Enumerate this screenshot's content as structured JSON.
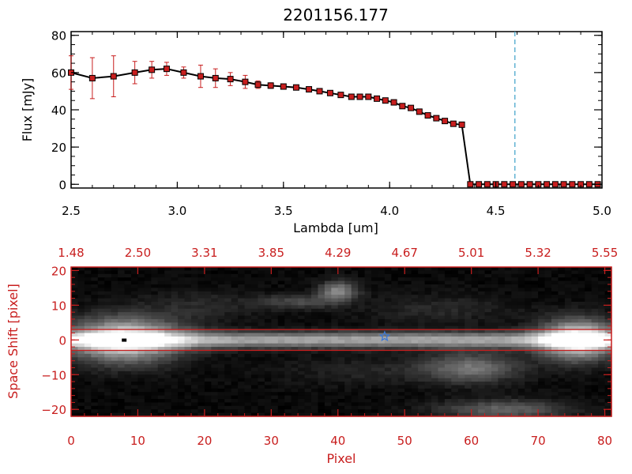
{
  "chart_data": [
    {
      "type": "line",
      "title": "2201156.177",
      "xlabel": "Lambda [um]",
      "ylabel": "Flux [mJy]",
      "xlim": [
        2.5,
        5.0
      ],
      "ylim": [
        -2,
        82
      ],
      "xticks": [
        2.5,
        3.0,
        3.5,
        4.0,
        4.5,
        5.0
      ],
      "xtick_labels": [
        "2.5",
        "3.0",
        "3.5",
        "4.0",
        "4.5",
        "5.0"
      ],
      "yticks": [
        0,
        20,
        40,
        60,
        80
      ],
      "ytick_labels": [
        "0",
        "20",
        "40",
        "60",
        "80"
      ],
      "reference_line_x": 4.59,
      "reference_line_color": "#3aa0c8",
      "series": [
        {
          "line_color": "#000000",
          "marker_color": "#c81e1e",
          "errorbar_color": "#c81e1e",
          "x": [
            2.5,
            2.6,
            2.7,
            2.8,
            2.88,
            2.95,
            3.03,
            3.11,
            3.18,
            3.25,
            3.32,
            3.38,
            3.44,
            3.5,
            3.56,
            3.62,
            3.67,
            3.72,
            3.77,
            3.82,
            3.86,
            3.9,
            3.94,
            3.98,
            4.02,
            4.06,
            4.1,
            4.14,
            4.18,
            4.22,
            4.26,
            4.3,
            4.34,
            4.38,
            4.42,
            4.46,
            4.5,
            4.54,
            4.58,
            4.62,
            4.66,
            4.7,
            4.74,
            4.78,
            4.82,
            4.86,
            4.9,
            4.94,
            4.98
          ],
          "y": [
            60,
            57,
            58,
            60,
            61.5,
            62,
            60,
            58,
            57,
            56.5,
            55,
            53.5,
            53,
            52.5,
            52,
            51,
            50,
            49,
            48,
            47,
            47,
            47,
            46,
            45,
            44,
            42,
            41,
            39,
            37,
            35.5,
            34,
            32.5,
            32,
            0,
            0,
            0,
            0,
            0,
            0,
            0,
            0,
            0,
            0,
            0,
            0,
            0,
            0,
            0,
            0
          ],
          "yerr": [
            9,
            11,
            11,
            6,
            4.5,
            3.5,
            3,
            6,
            5,
            3.5,
            3.5,
            2,
            1.5,
            1,
            1,
            1,
            1,
            1,
            1,
            1,
            1,
            1,
            1,
            1,
            1,
            1,
            1,
            1,
            1,
            1,
            1,
            1,
            1,
            0,
            0,
            0,
            0,
            0,
            0,
            0,
            0,
            0,
            0,
            0,
            0,
            0,
            0,
            0,
            0
          ]
        }
      ]
    },
    {
      "type": "heatmap",
      "xlabel": "Pixel",
      "ylabel": "Space Shift [pixel]",
      "xlim": [
        0,
        81
      ],
      "ylim": [
        -22,
        21
      ],
      "xticks": [
        0,
        10,
        20,
        30,
        40,
        50,
        60,
        70,
        80
      ],
      "xtick_labels": [
        "0",
        "10",
        "20",
        "30",
        "40",
        "50",
        "60",
        "70",
        "80"
      ],
      "yticks": [
        -20,
        -10,
        0,
        10,
        20
      ],
      "ytick_labels": [
        "−20",
        "−10",
        "0",
        "10",
        "20"
      ],
      "top_axis_ticks": [
        0,
        10,
        20,
        30,
        40,
        50,
        60,
        70,
        80
      ],
      "top_axis_labels": [
        "1.48",
        "2.50",
        "3.31",
        "3.85",
        "4.29",
        "4.67",
        "5.01",
        "5.32",
        "5.55"
      ],
      "aperture_lines_y": [
        3,
        -3
      ],
      "aperture_color": "#c81e1e",
      "axis_color": "#c81e1e",
      "star_marker": {
        "x": 47,
        "y": 1,
        "color": "#3a78d8"
      },
      "trace_center_y": 0,
      "trace_sigma": 1.6,
      "blobs": [
        {
          "x": 8,
          "y": 0,
          "sx": 6,
          "sy": 4.5,
          "amp": 0.85
        },
        {
          "x": 76,
          "y": 0,
          "sx": 4,
          "sy": 4,
          "amp": 0.9
        },
        {
          "x": 60,
          "y": -8,
          "sx": 5,
          "sy": 3,
          "amp": 0.4
        },
        {
          "x": 65,
          "y": -20,
          "sx": 7,
          "sy": 2,
          "amp": 0.35
        },
        {
          "x": 40,
          "y": 14,
          "sx": 2,
          "sy": 2,
          "amp": 0.5
        },
        {
          "x": 34,
          "y": 11,
          "sx": 4,
          "sy": 1.5,
          "amp": 0.25
        },
        {
          "x": 20,
          "y": 10,
          "sx": 6,
          "sy": 3,
          "amp": 0.12
        },
        {
          "x": 55,
          "y": 9,
          "sx": 8,
          "sy": 3,
          "amp": 0.12
        },
        {
          "x": 45,
          "y": -9,
          "sx": 10,
          "sy": 3,
          "amp": 0.1
        }
      ]
    }
  ]
}
